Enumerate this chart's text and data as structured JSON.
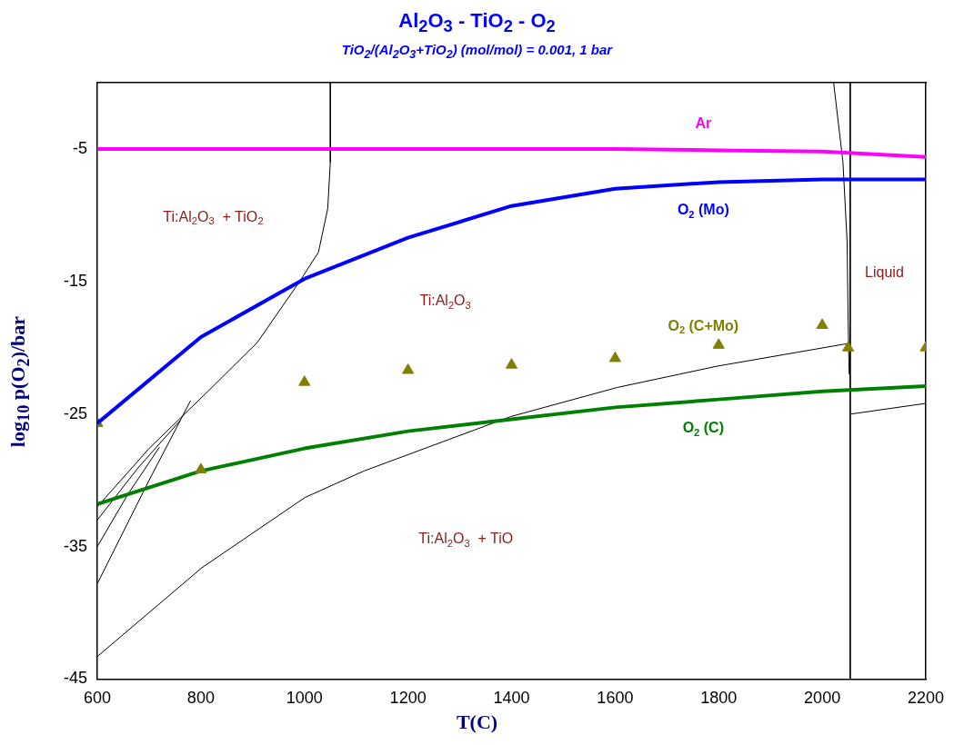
{
  "chart_data": {
    "type": "line",
    "title": "Al$_{2}$O$_{3}$ - TiO$_{2}$ - O$_{2}$",
    "subtitle": "TiO$_{2}$/(Al$_{2}$O$_{3}$+TiO$_{2}$) (mol/mol) = 0.001, 1 bar",
    "xlabel": "T(C)",
    "ylabel": "log$_{10}$ p(O$_{2}$)/bar",
    "xlim": [
      600,
      2200
    ],
    "xticks": [
      600,
      800,
      1000,
      1200,
      1400,
      1600,
      1800,
      2000,
      2200
    ],
    "ylim": [
      -45,
      0
    ],
    "yticks": [
      -45,
      -35,
      -25,
      -15,
      -5
    ],
    "grid": false,
    "legend": false,
    "line_style": "solid",
    "marker": "none",
    "x": [
      600,
      800,
      1000,
      1200,
      1400,
      1600,
      1800,
      2000,
      2200
    ],
    "series": [
      {
        "name": "Ar",
        "color": "#ff00ff",
        "values": [
          -5,
          -5,
          -5,
          -5,
          -5,
          -5,
          -5.1,
          -5.2,
          -5.6
        ]
      },
      {
        "name": "O$_{2}$ (Mo)",
        "color": "#0000ff",
        "values": [
          -25.7,
          -19.2,
          -14.8,
          -11.7,
          -9.3,
          -8.0,
          -7.5,
          -7.3,
          -7.3
        ]
      },
      {
        "name": "O$_{2}$ (C+Mo)",
        "color": "#808000",
        "type": "scatter",
        "marker": "triangle",
        "x": [
          600,
          800,
          1000,
          1200,
          1400,
          1600,
          1800,
          2000,
          2050,
          2200
        ],
        "values": [
          -25.7,
          -29.2,
          -22.6,
          -21.7,
          -21.3,
          -20.8,
          -19.8,
          -18.3,
          -20.0,
          -20.0
        ]
      },
      {
        "name": "O$_{2}$ (C)",
        "color": "#008000",
        "values": [
          -31.8,
          -29.3,
          -27.6,
          -26.3,
          -25.4,
          -24.5,
          -23.9,
          -23.3,
          -22.9
        ]
      },
      {
        "color": "#000000",
        "x": [
          1050,
          1050,
          1045,
          1027,
          989,
          909,
          816,
          700,
          600
        ],
        "values": [
          0,
          -6,
          -9.5,
          -12.8,
          -15.1,
          -19.6,
          -23.2,
          -27.6,
          -32
        ]
      },
      {
        "color": "#000000",
        "x": [
          600,
          802,
          1001,
          1115,
          1398,
          1604,
          1796,
          2047
        ],
        "values": [
          -43.3,
          -36.6,
          -31.3,
          -29.3,
          -25.2,
          -23.0,
          -21.4,
          -19.7
        ]
      },
      {
        "color": "#000000",
        "x": [
          600,
          700,
          780
        ],
        "values": [
          -37.8,
          -30,
          -24
        ]
      },
      {
        "color": "#000000",
        "x": [
          600,
          680,
          760
        ],
        "values": [
          -33,
          -29,
          -25.5
        ]
      },
      {
        "color": "#000000",
        "x": [
          600,
          660,
          720
        ],
        "values": [
          -35,
          -31,
          -27.5
        ]
      },
      {
        "color": "#000000",
        "x": [
          2054,
          2054
        ],
        "values": [
          0,
          -45
        ]
      },
      {
        "color": "#000000",
        "x": [
          2022,
          2040,
          2048,
          2050,
          2052
        ],
        "values": [
          0,
          -6,
          -12,
          -18,
          -22
        ]
      },
      {
        "color": "#000000",
        "x": [
          2056,
          2200
        ],
        "values": [
          -25.0,
          -24.2
        ]
      }
    ],
    "annotations": [
      "Ti:Al$_{2}$O$_{3}$  + TiO$_{2}$",
      "Ti:Al$_{2}$O$_{3}$",
      "Ti:Al$_{2}$O$_{3}$  + TiO",
      "Liquid"
    ]
  }
}
